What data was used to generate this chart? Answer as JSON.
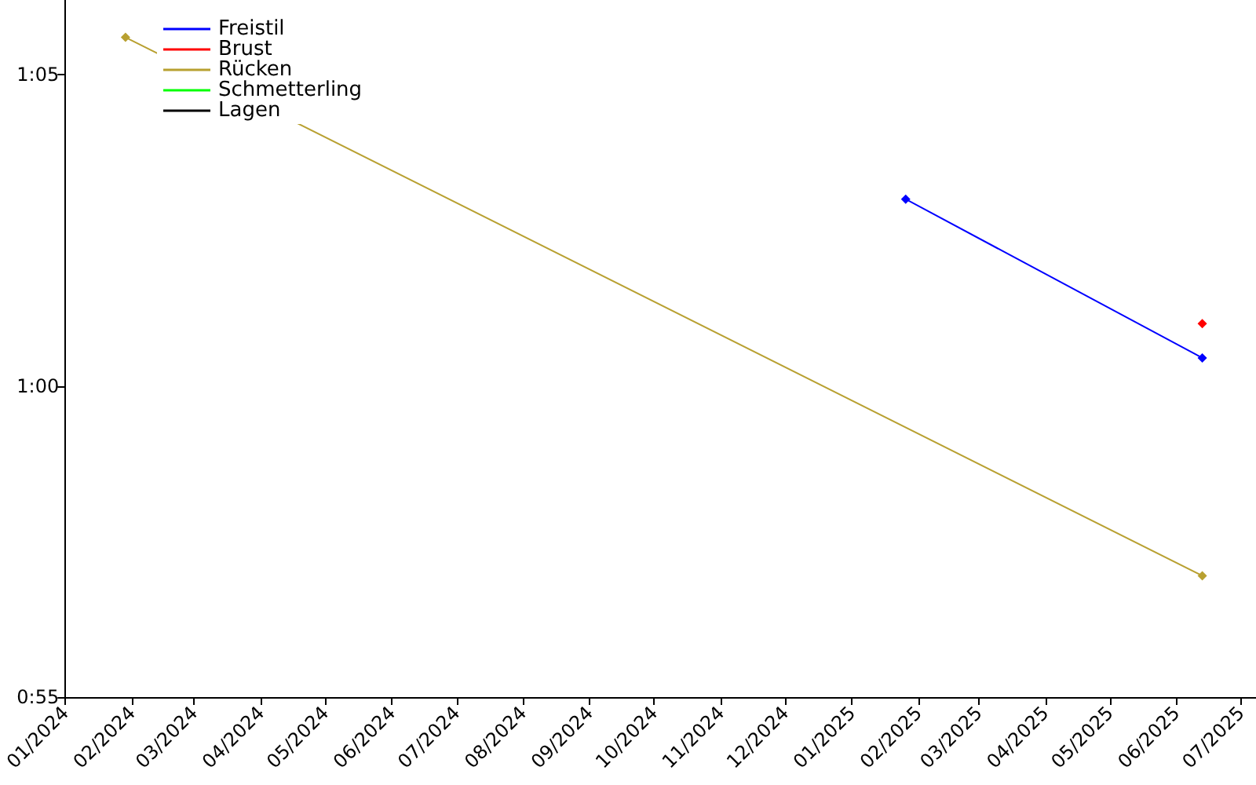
{
  "chart_data": {
    "type": "line",
    "marker": "diamond",
    "grid": false,
    "legend": "top left",
    "xlim": [
      "2024-01-01",
      "2025-07-08"
    ],
    "xticks": [
      {
        "value": "2024-01-01",
        "label": "01/2024"
      },
      {
        "value": "2024-02-01",
        "label": "02/2024"
      },
      {
        "value": "2024-03-01",
        "label": "03/2024"
      },
      {
        "value": "2024-04-01",
        "label": "04/2024"
      },
      {
        "value": "2024-05-01",
        "label": "05/2024"
      },
      {
        "value": "2024-06-01",
        "label": "06/2024"
      },
      {
        "value": "2024-07-01",
        "label": "07/2024"
      },
      {
        "value": "2024-08-01",
        "label": "08/2024"
      },
      {
        "value": "2024-09-01",
        "label": "09/2024"
      },
      {
        "value": "2024-10-01",
        "label": "10/2024"
      },
      {
        "value": "2024-11-01",
        "label": "11/2024"
      },
      {
        "value": "2024-12-01",
        "label": "12/2024"
      },
      {
        "value": "2025-01-01",
        "label": "01/2025"
      },
      {
        "value": "2025-02-01",
        "label": "02/2025"
      },
      {
        "value": "2025-03-01",
        "label": "03/2025"
      },
      {
        "value": "2025-04-01",
        "label": "04/2025"
      },
      {
        "value": "2025-05-01",
        "label": "05/2025"
      },
      {
        "value": "2025-06-01",
        "label": "06/2025"
      },
      {
        "value": "2025-07-01",
        "label": "07/2025"
      }
    ],
    "ylim": [
      55,
      66.2
    ],
    "yticks": [
      {
        "value": 55,
        "label": "0:55"
      },
      {
        "value": 60,
        "label": "1:00"
      },
      {
        "value": 65,
        "label": "1:05"
      }
    ],
    "series": [
      {
        "name": "Freistil",
        "color": "#0000ff",
        "x": [
          "2025-01-26",
          "2025-06-13"
        ],
        "values": [
          63.0,
          60.45
        ]
      },
      {
        "name": "Brust",
        "color": "#ff0000",
        "x": [
          "2025-06-13"
        ],
        "values": [
          61.0
        ]
      },
      {
        "name": "Rücken",
        "color": "#b8a030",
        "x": [
          "2024-01-29",
          "2025-06-13"
        ],
        "values": [
          65.6,
          56.95
        ]
      },
      {
        "name": "Schmetterling",
        "color": "#00ff00"
      },
      {
        "name": "Lagen",
        "color": "#000000"
      }
    ]
  }
}
